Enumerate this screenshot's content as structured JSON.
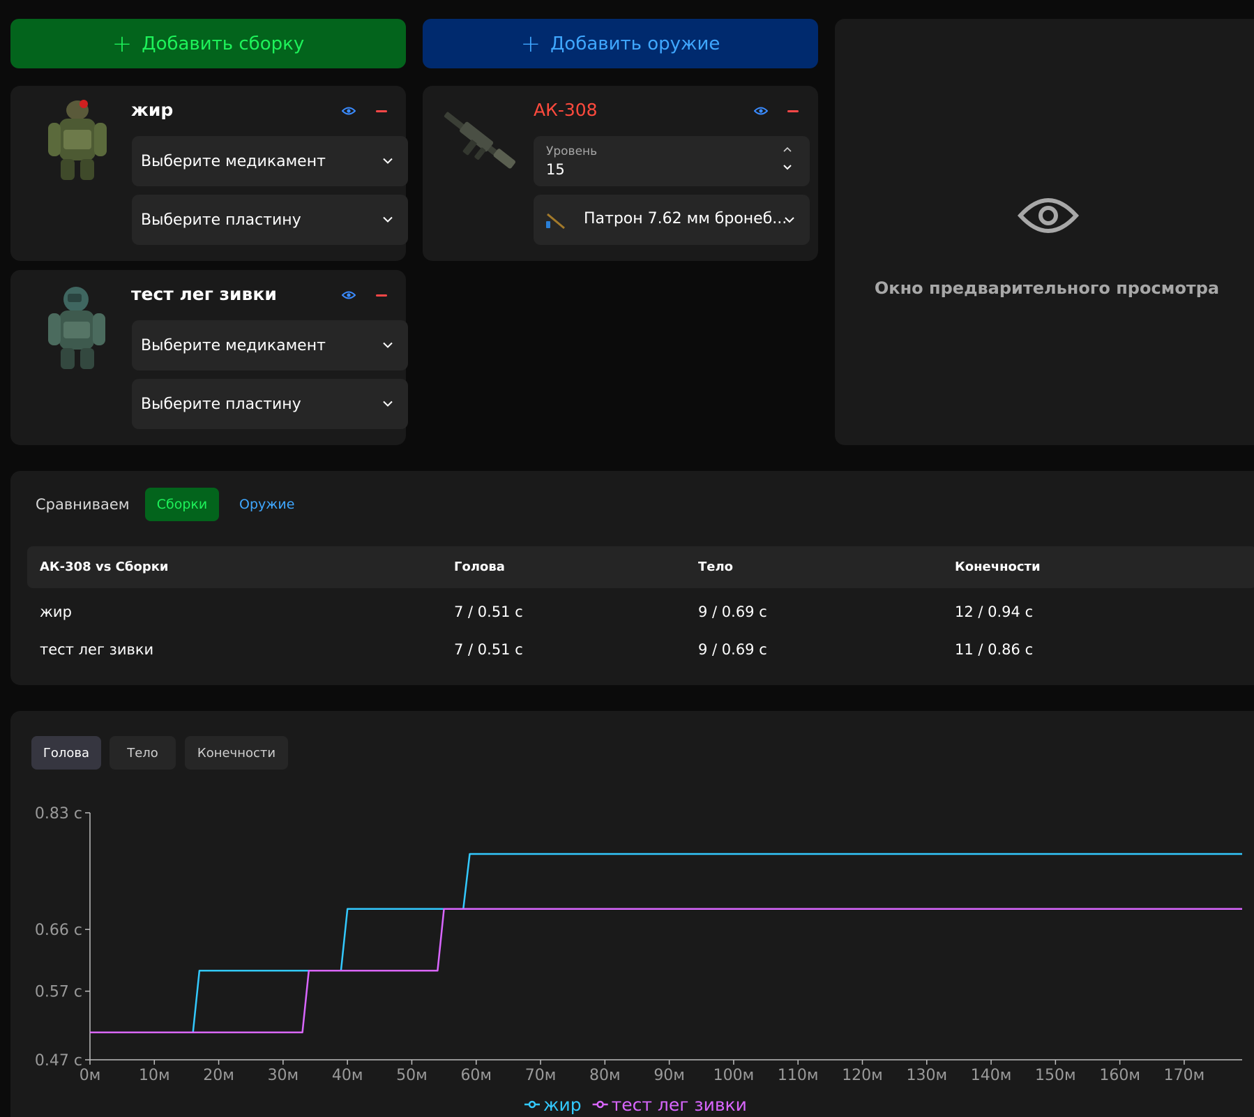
{
  "actions": {
    "add_build": "Добавить сборку",
    "add_weapon": "Добавить оружие"
  },
  "builds": [
    {
      "name": "жир",
      "medicine_placeholder": "Выберите медикамент",
      "plate_placeholder": "Выберите пластину",
      "name_color": "#ffffff"
    },
    {
      "name": "тест лег зивки",
      "medicine_placeholder": "Выберите медикамент",
      "plate_placeholder": "Выберите пластину",
      "name_color": "#ffffff"
    }
  ],
  "weapon": {
    "name": "АК-308",
    "name_color": "#ff4a3d",
    "level_label": "Уровень",
    "level_value": "15",
    "ammo": "Патрон 7.62 мм бронеб..."
  },
  "preview": {
    "text": "Окно предварительного просмотра"
  },
  "comparison": {
    "label": "Сравниваем",
    "tabs": [
      "Сборки",
      "Оружие"
    ],
    "active_tab": "Сборки",
    "headers": [
      "АК-308 vs Сборки",
      "Голова",
      "Тело",
      "Конечности"
    ],
    "rows": [
      [
        "жир",
        "7 / 0.51 с",
        "9 / 0.69 с",
        "12 / 0.94 с"
      ],
      [
        "тест лег зивки",
        "7 / 0.51 с",
        "9 / 0.69 с",
        "11 / 0.86 с"
      ]
    ]
  },
  "chart_tabs": [
    "Голова",
    "Тело",
    "Конечности"
  ],
  "chart_tab_active": "Голова",
  "chart_data": {
    "type": "line",
    "title": "",
    "xlabel": "",
    "ylabel": "",
    "x_ticks": [
      "0м",
      "10м",
      "20м",
      "30м",
      "40м",
      "50м",
      "60м",
      "70м",
      "80м",
      "90м",
      "100м",
      "110м",
      "120м",
      "130м",
      "140м",
      "150м",
      "160м",
      "170м"
    ],
    "y_ticks": [
      "0.47 с",
      "0.57 с",
      "0.66 с",
      "0.83 с"
    ],
    "y_tick_values": [
      0.47,
      0.57,
      0.66,
      0.83
    ],
    "xlim": [
      0,
      179
    ],
    "ylim": [
      0.47,
      0.83
    ],
    "grid": false,
    "legend": "bottom-center",
    "series": [
      {
        "name": "жир",
        "color": "#33c9ff",
        "x": [
          0,
          16,
          17,
          39,
          40,
          58,
          59,
          179
        ],
        "y": [
          0.51,
          0.51,
          0.6,
          0.6,
          0.69,
          0.69,
          0.77,
          0.77
        ]
      },
      {
        "name": "тест лег зивки",
        "color": "#d966ff",
        "x": [
          0,
          33,
          34,
          54,
          55,
          179
        ],
        "y": [
          0.51,
          0.51,
          0.6,
          0.6,
          0.69,
          0.69
        ]
      }
    ]
  }
}
